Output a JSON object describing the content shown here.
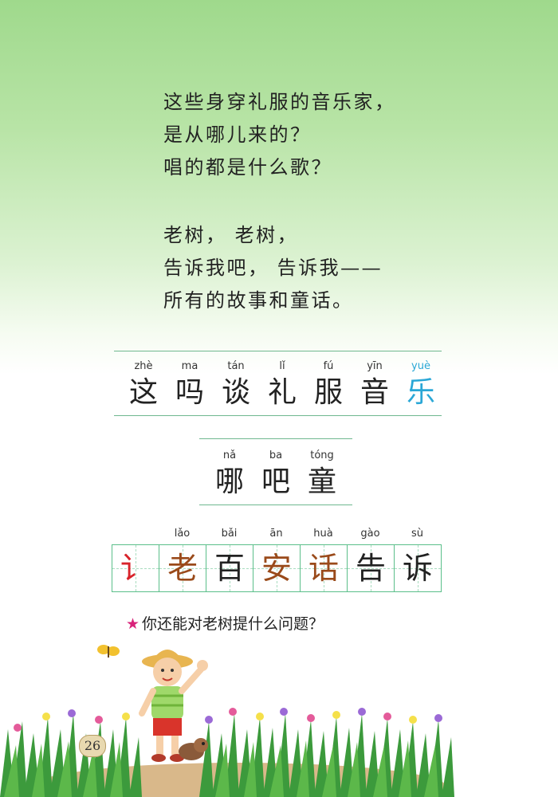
{
  "poem": {
    "lines": [
      "这些身穿礼服的音乐家，",
      "是从哪儿来的？",
      "唱的都是什么歌？",
      "老树， 老树，",
      "告诉我吧， 告诉我——",
      "所有的故事和童话。"
    ]
  },
  "vocab1": [
    {
      "py": "zhè",
      "hz": "这"
    },
    {
      "py": "ma",
      "hz": "吗"
    },
    {
      "py": "tán",
      "hz": "谈"
    },
    {
      "py": "lǐ",
      "hz": "礼"
    },
    {
      "py": "fú",
      "hz": "服"
    },
    {
      "py": "yīn",
      "hz": "音"
    },
    {
      "py": "yuè",
      "hz": "乐"
    }
  ],
  "vocab2": [
    {
      "py": "nǎ",
      "hz": "哪"
    },
    {
      "py": "ba",
      "hz": "吧"
    },
    {
      "py": "tóng",
      "hz": "童"
    }
  ],
  "writing": {
    "radical": "讠",
    "chars": [
      {
        "py": "lǎo",
        "hz": "老"
      },
      {
        "py": "bǎi",
        "hz": "百"
      },
      {
        "py": "ān",
        "hz": "安"
      },
      {
        "py": "huà",
        "hz": "话"
      },
      {
        "py": "gào",
        "hz": "告"
      },
      {
        "py": "sù",
        "hz": "诉"
      }
    ]
  },
  "question": {
    "star": "★",
    "text": "你还能对老树提什么问题？"
  },
  "page_number": "26",
  "colors": {
    "highlight_blue": "#2aa7d6",
    "radical_red": "#d8232a",
    "stroke_brown": "#9a4a1a",
    "rule_green": "#6fb88f"
  }
}
